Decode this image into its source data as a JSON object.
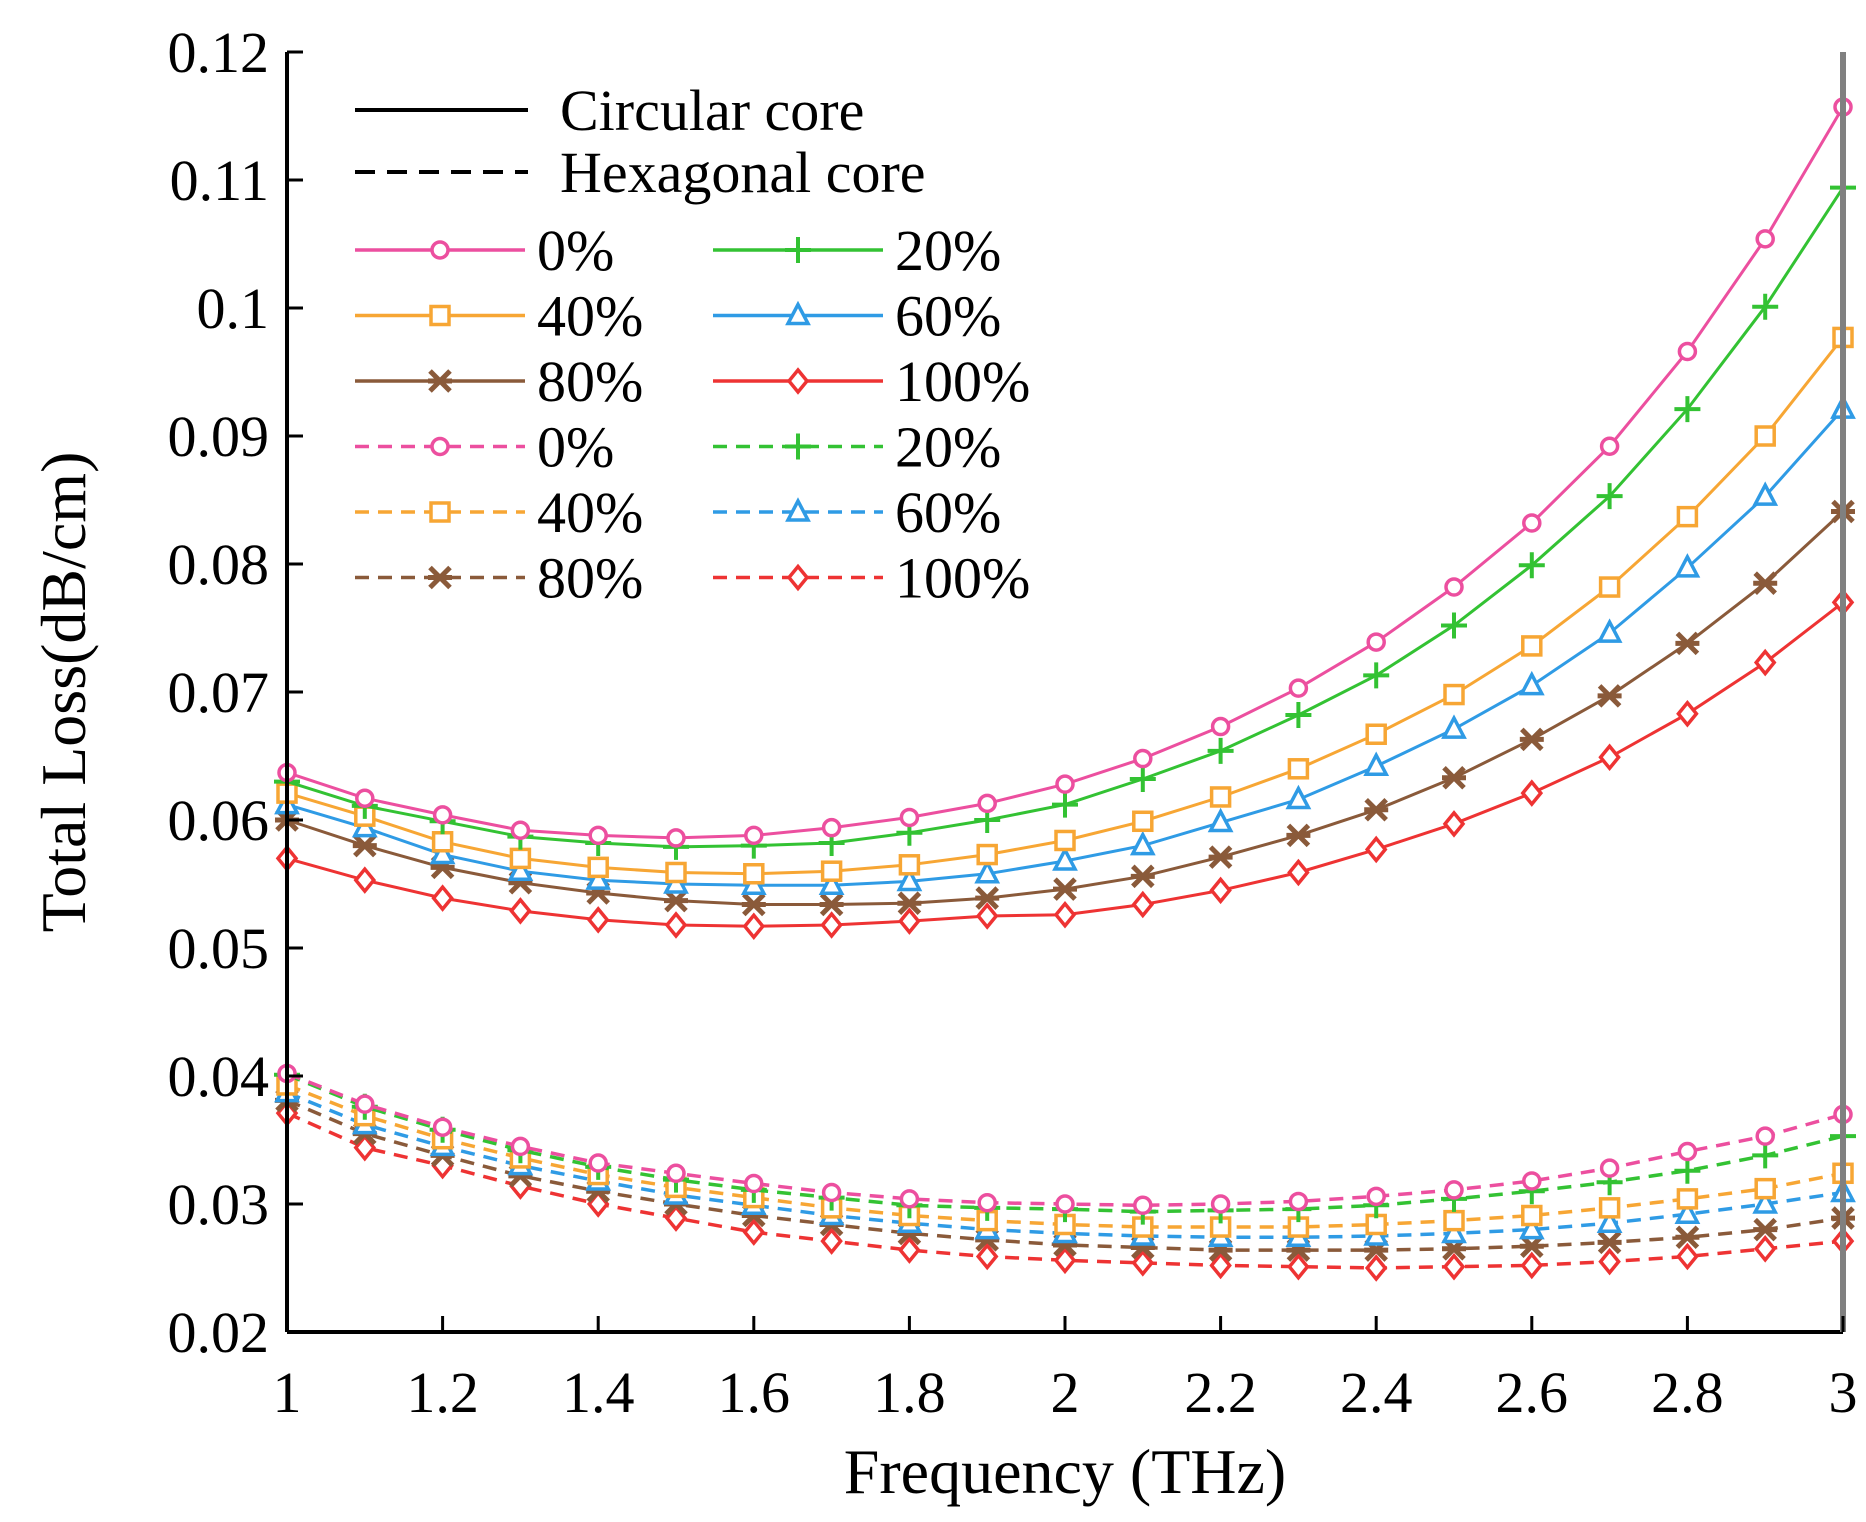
{
  "chart_data": {
    "type": "line",
    "title": "",
    "xlabel": "Frequency (THz)",
    "ylabel": "Total Loss(dB/cm)",
    "xlim": [
      1,
      3
    ],
    "ylim": [
      0.02,
      0.12
    ],
    "xticks": [
      "1",
      "1.2",
      "1.4",
      "1.6",
      "1.8",
      "2",
      "2.2",
      "2.4",
      "2.6",
      "2.8",
      "3"
    ],
    "yticks": [
      "0.02",
      "0.03",
      "0.04",
      "0.05",
      "0.06",
      "0.07",
      "0.08",
      "0.09",
      "0.1",
      "0.11",
      "0.12"
    ],
    "x": [
      1.0,
      1.1,
      1.2,
      1.3,
      1.4,
      1.5,
      1.6,
      1.7,
      1.8,
      1.9,
      2.0,
      2.1,
      2.2,
      2.3,
      2.4,
      2.5,
      2.6,
      2.7,
      2.8,
      2.9,
      3.0
    ],
    "legend": {
      "placement": "top-left",
      "styles": [
        {
          "label": "Circular core",
          "dash": "solid"
        },
        {
          "label": "Hexagonal core",
          "dash": "dashed"
        }
      ]
    },
    "series": [
      {
        "name": "0%",
        "core": "Circular core",
        "dash": "solid",
        "color": "#ec4f9f",
        "marker": "circle",
        "values": [
          0.0637,
          0.0617,
          0.0604,
          0.0592,
          0.0588,
          0.0586,
          0.0588,
          0.0594,
          0.0602,
          0.0613,
          0.0628,
          0.0648,
          0.0673,
          0.0703,
          0.0739,
          0.0782,
          0.0832,
          0.0892,
          0.0966,
          0.1054,
          0.1157
        ]
      },
      {
        "name": "20%",
        "core": "Circular core",
        "dash": "solid",
        "color": "#33c233",
        "marker": "plus",
        "values": [
          0.063,
          0.0611,
          0.0599,
          0.0587,
          0.0582,
          0.0579,
          0.058,
          0.0582,
          0.059,
          0.06,
          0.0612,
          0.0632,
          0.0654,
          0.0682,
          0.0713,
          0.0752,
          0.0799,
          0.0853,
          0.0921,
          0.1001,
          0.1094
        ]
      },
      {
        "name": "40%",
        "core": "Circular core",
        "dash": "solid",
        "color": "#f7a634",
        "marker": "square",
        "values": [
          0.0621,
          0.0603,
          0.0583,
          0.057,
          0.0563,
          0.0559,
          0.0558,
          0.056,
          0.0565,
          0.0573,
          0.0584,
          0.0599,
          0.0618,
          0.064,
          0.0667,
          0.0698,
          0.0736,
          0.0782,
          0.0837,
          0.09,
          0.0977
        ]
      },
      {
        "name": "60%",
        "core": "Circular core",
        "dash": "solid",
        "color": "#2f9be5",
        "marker": "triangle",
        "values": [
          0.0612,
          0.0594,
          0.0573,
          0.056,
          0.0553,
          0.055,
          0.0549,
          0.0549,
          0.0552,
          0.0558,
          0.0568,
          0.058,
          0.0598,
          0.0616,
          0.0642,
          0.0671,
          0.0705,
          0.0746,
          0.0797,
          0.0853,
          0.0921
        ]
      },
      {
        "name": "80%",
        "core": "Circular core",
        "dash": "solid",
        "color": "#8a5a3a",
        "marker": "asterisk",
        "values": [
          0.06,
          0.058,
          0.0563,
          0.0551,
          0.0543,
          0.0537,
          0.0534,
          0.0534,
          0.0535,
          0.0539,
          0.0546,
          0.0556,
          0.0571,
          0.0588,
          0.0608,
          0.0633,
          0.0663,
          0.0697,
          0.0738,
          0.0785,
          0.0841
        ]
      },
      {
        "name": "100%",
        "core": "Circular core",
        "dash": "solid",
        "color": "#ee3333",
        "marker": "diamond",
        "values": [
          0.057,
          0.0553,
          0.0539,
          0.0529,
          0.0522,
          0.0518,
          0.0517,
          0.0518,
          0.0521,
          0.0525,
          0.0526,
          0.0534,
          0.0545,
          0.0559,
          0.0577,
          0.0597,
          0.0621,
          0.0649,
          0.0683,
          0.0723,
          0.077
        ]
      },
      {
        "name": "0%",
        "core": "Hexagonal core",
        "dash": "dashed",
        "color": "#ec4f9f",
        "marker": "circle",
        "values": [
          0.0402,
          0.0378,
          0.036,
          0.0345,
          0.0332,
          0.0324,
          0.0316,
          0.0309,
          0.0304,
          0.0301,
          0.03,
          0.0299,
          0.03,
          0.0302,
          0.0306,
          0.0311,
          0.0318,
          0.0328,
          0.0341,
          0.0353,
          0.037
        ]
      },
      {
        "name": "20%",
        "core": "Hexagonal core",
        "dash": "dashed",
        "color": "#33c233",
        "marker": "plus",
        "values": [
          0.0401,
          0.0376,
          0.0358,
          0.0342,
          0.0329,
          0.0319,
          0.0311,
          0.0305,
          0.0299,
          0.0297,
          0.0296,
          0.0294,
          0.0295,
          0.0296,
          0.0299,
          0.0304,
          0.031,
          0.0317,
          0.0326,
          0.0338,
          0.0353
        ]
      },
      {
        "name": "40%",
        "core": "Hexagonal core",
        "dash": "dashed",
        "color": "#f7a634",
        "marker": "square",
        "values": [
          0.0393,
          0.0369,
          0.0351,
          0.0336,
          0.0323,
          0.0313,
          0.0305,
          0.0297,
          0.0291,
          0.0287,
          0.0284,
          0.0282,
          0.0282,
          0.0282,
          0.0284,
          0.0287,
          0.0291,
          0.0297,
          0.0304,
          0.0312,
          0.0324
        ]
      },
      {
        "name": "60%",
        "core": "Hexagonal core",
        "dash": "dashed",
        "color": "#2f9be5",
        "marker": "triangle",
        "values": [
          0.0387,
          0.0362,
          0.0345,
          0.033,
          0.0318,
          0.0307,
          0.0299,
          0.0291,
          0.0285,
          0.028,
          0.0277,
          0.0275,
          0.0274,
          0.0274,
          0.0275,
          0.0277,
          0.028,
          0.0285,
          0.0292,
          0.03,
          0.0309
        ]
      },
      {
        "name": "80%",
        "core": "Hexagonal core",
        "dash": "dashed",
        "color": "#8a5a3a",
        "marker": "asterisk",
        "values": [
          0.0381,
          0.0355,
          0.0338,
          0.0322,
          0.031,
          0.03,
          0.0291,
          0.0284,
          0.0277,
          0.0272,
          0.0268,
          0.0266,
          0.0264,
          0.0264,
          0.0264,
          0.0265,
          0.0267,
          0.027,
          0.0274,
          0.028,
          0.0289
        ]
      },
      {
        "name": "100%",
        "core": "Hexagonal core",
        "dash": "dashed",
        "color": "#ee3333",
        "marker": "diamond",
        "values": [
          0.0371,
          0.0344,
          0.033,
          0.0314,
          0.03,
          0.0289,
          0.0278,
          0.0271,
          0.0264,
          0.0259,
          0.0256,
          0.0254,
          0.0252,
          0.0251,
          0.025,
          0.0251,
          0.0252,
          0.0255,
          0.0259,
          0.0265,
          0.0271
        ]
      }
    ]
  }
}
